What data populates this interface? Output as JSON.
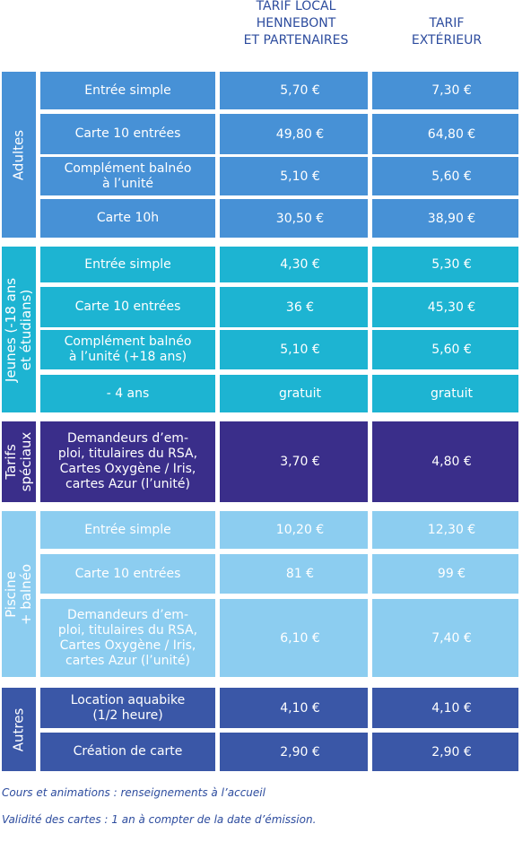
{
  "header": {
    "columns": [
      "TARIF LOCAL\nHENNEBONT\nET PARTENAIRES",
      "TARIF\nEXTÉRIEUR"
    ]
  },
  "groups": [
    {
      "label": "Adultes",
      "color": "#4791d6",
      "rows": [
        [
          "Entrée simple",
          "5,70 €",
          "7,30 €"
        ],
        [
          "Carte 10 entrées",
          "49,80 €",
          "64,80 €"
        ],
        [
          "Complément balnéo\nà l’unité",
          "5,10 €",
          "5,60 €"
        ],
        [
          "Carte 10h",
          "30,50 €",
          "38,90 €"
        ]
      ]
    },
    {
      "label": "Jeunes (-18 ans\net étudians)",
      "color": "#1db4d2",
      "rows": [
        [
          "Entrée simple",
          "4,30 €",
          "5,30 €"
        ],
        [
          "Carte 10 entrées",
          "36 €",
          "45,30 €"
        ],
        [
          "Complément balnéo\nà l’unité (+18 ans)",
          "5,10 €",
          "5,60 €"
        ],
        [
          "- 4 ans",
          "gratuit",
          "gratuit"
        ]
      ]
    },
    {
      "label": "Tarifs\nspéciaux",
      "color": "#3a2e8a",
      "rows": [
        [
          "Demandeurs d’em-\nploi, titulaires du RSA,\nCartes Oxygène / Iris,\ncartes Azur (l’unité)",
          "3,70 €",
          "4,80 €"
        ]
      ]
    },
    {
      "label": "Piscine\n+ balnéo",
      "color": "#8ccdf0",
      "rows": [
        [
          "Entrée simple",
          "10,20 €",
          "12,30 €"
        ],
        [
          "Carte 10 entrées",
          "81 €",
          "99 €"
        ],
        [
          "Demandeurs d’em-\nploi, titulaires du RSA,\nCartes Oxygène / Iris,\ncartes Azur (l’unité)",
          "6,10 €",
          "7,40 €"
        ]
      ]
    },
    {
      "label": "Autres",
      "color": "#3a57a7",
      "rows": [
        [
          "Location aquabike\n(1/2 heure)",
          "4,10 €",
          "4,10 €"
        ],
        [
          "Création de carte",
          "2,90 €",
          "2,90 €"
        ]
      ]
    }
  ],
  "notes": [
    "Cours et animations : renseignements à l’accueil",
    "Validité des cartes : 1 an à compter de la date d’émission."
  ]
}
